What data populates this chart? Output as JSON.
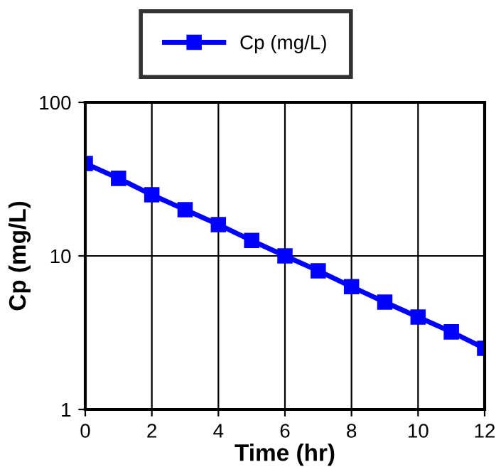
{
  "chart_data": {
    "type": "line",
    "xlabel": "Time (hr)",
    "ylabel": "Cp (mg/L)",
    "x": [
      0,
      1,
      2,
      3,
      4,
      5,
      6,
      7,
      8,
      9,
      10,
      11,
      12
    ],
    "series": [
      {
        "name": "Cp (mg/L)",
        "color": "#0000ff",
        "values": [
          40,
          32,
          25,
          20,
          16,
          12.6,
          10,
          8,
          6.3,
          5,
          4,
          3.2,
          2.5
        ]
      }
    ],
    "xlim": [
      0,
      12
    ],
    "xticks": [
      0,
      2,
      4,
      6,
      8,
      10,
      12
    ],
    "ylim": [
      1,
      100
    ],
    "yticks": [
      1,
      10,
      100
    ],
    "log": "y",
    "grid": true,
    "legend": "top",
    "marker": "square",
    "line_style": "solid"
  }
}
